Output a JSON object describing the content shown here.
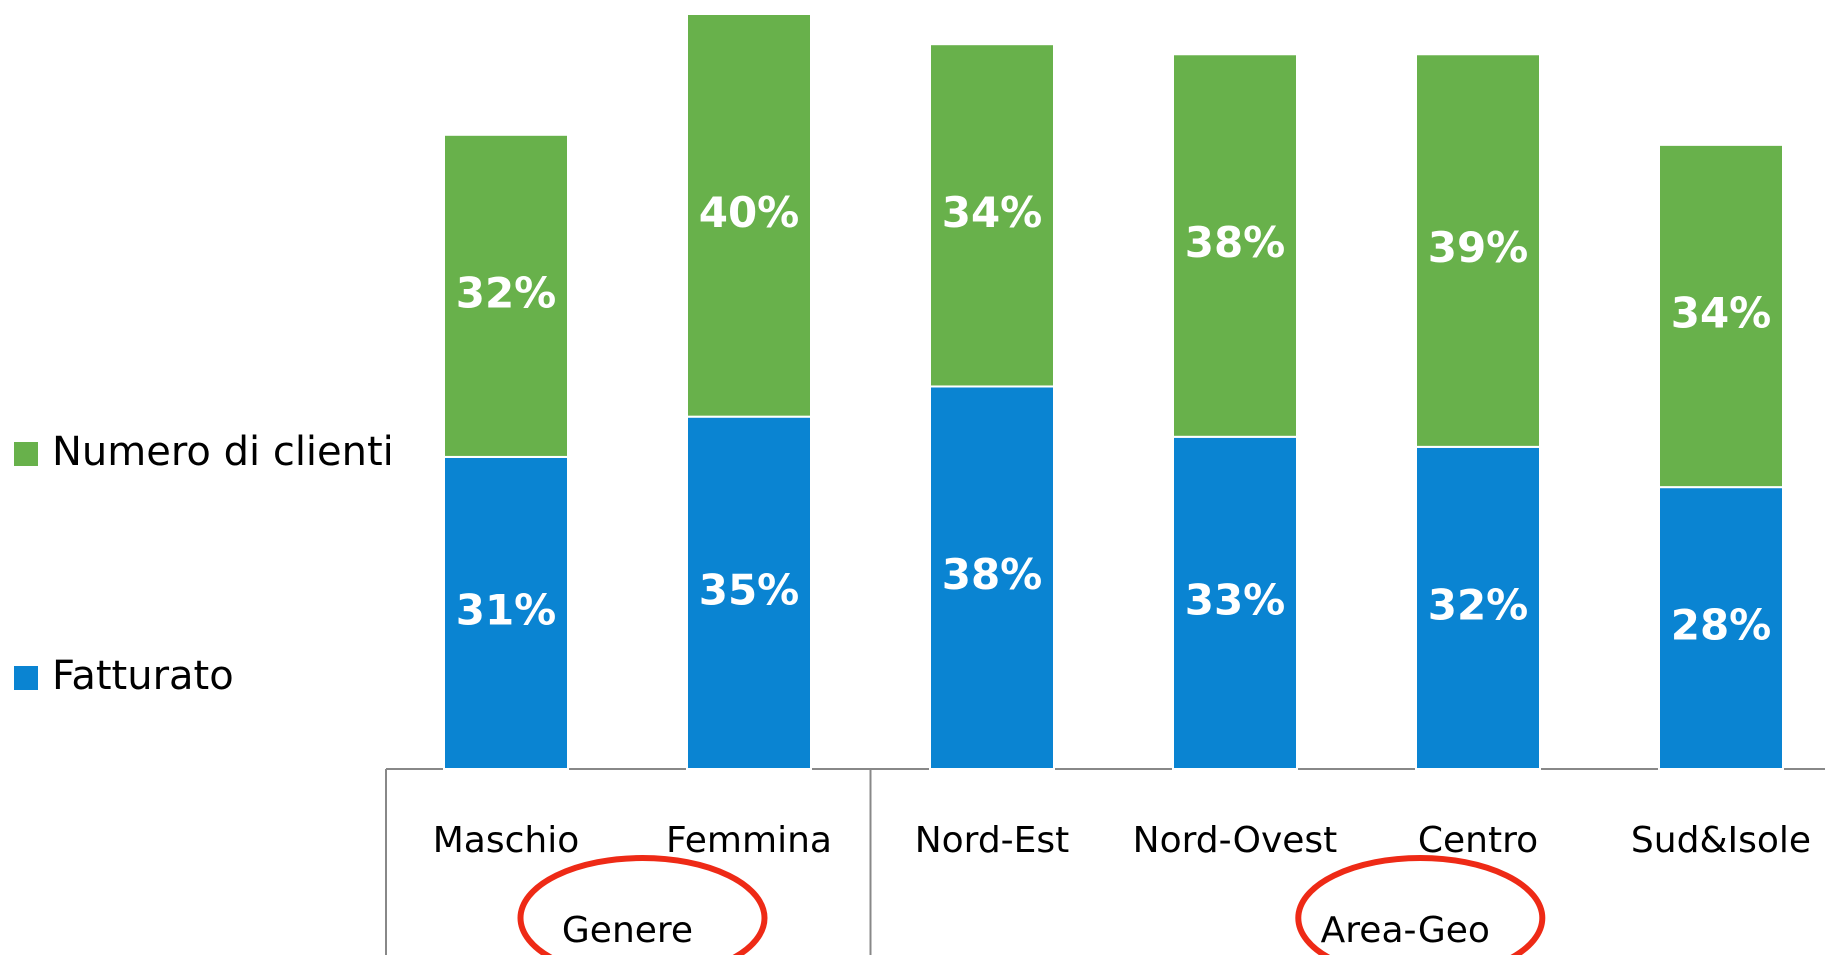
{
  "chart_data": {
    "type": "bar",
    "stacked": true,
    "category_groups": [
      {
        "name": "Genere",
        "categories": [
          "Maschio",
          "Femmina"
        ]
      },
      {
        "name": "Area-Geo",
        "categories": [
          "Nord-Est",
          "Nord-Ovest",
          "Centro",
          "Sud&Isole"
        ]
      }
    ],
    "series": [
      {
        "name": "Fatturato",
        "color": "#0a84d2",
        "values": [
          31,
          35,
          38,
          33,
          32,
          28
        ],
        "value_labels": [
          "31%",
          "35%",
          "38%",
          "33%",
          "32%",
          "28%"
        ]
      },
      {
        "name": "Numero di clienti",
        "color": "#68b14b",
        "values": [
          32,
          40,
          34,
          38,
          39,
          34
        ],
        "value_labels": [
          "32%",
          "40%",
          "34%",
          "38%",
          "39%",
          "34%"
        ]
      }
    ],
    "legend": "left",
    "annotation_color": "#ee2a16"
  }
}
